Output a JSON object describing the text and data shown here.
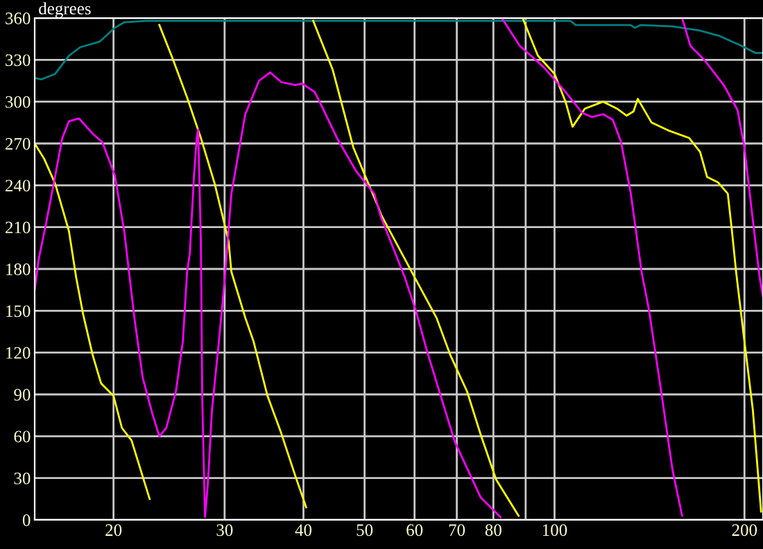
{
  "chart_data": {
    "type": "line",
    "ylabel": "degrees",
    "log": "x",
    "grid": true,
    "legend": false,
    "marker": "none",
    "line_style": "solid",
    "xlim": [
      15,
      214
    ],
    "xticks": [
      20,
      30,
      40,
      50,
      60,
      70,
      80,
      {
        "value": 90,
        "label": null
      },
      100,
      200
    ],
    "ylim": [
      0,
      360
    ],
    "yticks": [
      0,
      30,
      60,
      90,
      120,
      150,
      180,
      210,
      240,
      270,
      300,
      330,
      360
    ],
    "series": [
      {
        "color": "#008080",
        "x": [
          15.0,
          15.37,
          16.17,
          17.0,
          17.7,
          19.0,
          20.1,
          20.8,
          22.5,
          106,
          108,
          132,
          134,
          137,
          154,
          170,
          183,
          198,
          208,
          214
        ],
        "values": [
          317,
          316,
          320,
          333,
          339,
          343,
          353,
          357,
          358,
          358,
          355,
          355,
          353,
          355,
          354,
          351,
          347,
          340,
          335,
          335
        ]
      },
      {
        "color": "#ffff00",
        "x": [
          15.0,
          15.53,
          16.17,
          17.0,
          17.45,
          17.89,
          18.54,
          19.11,
          20.0,
          20.62,
          21.36,
          22.82,
          null,
          23.64,
          24.86,
          26.16,
          27.51,
          28.94,
          30.44,
          30.75,
          32.35,
          33.34,
          35.08,
          36.9,
          38.8,
          40.4,
          null,
          41.45,
          44.5,
          48.0,
          52.6,
          53.1,
          59.7,
          65.0,
          68.4,
          72.7,
          76.4,
          80.8,
          87.7,
          null,
          89.0,
          94.1,
          100,
          104.1,
          106.8,
          111.7,
          119.4,
          125.6,
          130.1,
          133.4,
          135.5,
          142.5,
          152.2,
          163.4,
          170.1,
          174.5,
          181.7,
          188.2,
          191.1,
          194.1,
          200,
          206.2,
          212.5
        ],
        "values": [
          270,
          259,
          241,
          207,
          174,
          148,
          118,
          98,
          89,
          66,
          57,
          15,
          null,
          355,
          330,
          303,
          274,
          241,
          200,
          178,
          145,
          128,
          89,
          62,
          32,
          9,
          null,
          358,
          323,
          267,
          224,
          219,
          176,
          145,
          118,
          92,
          61,
          29,
          3,
          null,
          360,
          333,
          320,
          300,
          282,
          295,
          300,
          295,
          290,
          293,
          302,
          285,
          279,
          274,
          264,
          246,
          242,
          234,
          207,
          177,
          128,
          79,
          6
        ]
      },
      {
        "color": "#ff00ff",
        "x": [
          15.0,
          15.22,
          15.61,
          16.17,
          16.59,
          17.0,
          17.63,
          18.54,
          19.2,
          20.1,
          20.8,
          21.58,
          22.25,
          23.05,
          23.64,
          24.25,
          25.11,
          25.76,
          26.16,
          26.42,
          26.83,
          27.1,
          27.24,
          27.51,
          27.65,
          27.93,
          28.22,
          28.65,
          29.38,
          29.99,
          30.75,
          32.35,
          34.02,
          35.43,
          36.9,
          38.8,
          39.8,
          41.66,
          42.95,
          45.2,
          48.5,
          51.8,
          53.1,
          57.9,
          60.3,
          62.8,
          65.7,
          69.5,
          76.4,
          82.1,
          null,
          82.5,
          88.1,
          96.0,
          104.1,
          110.6,
          114.6,
          119.4,
          123.7,
          127.5,
          132.1,
          137.5,
          141.1,
          147.6,
          153.8,
          159.3,
          null,
          159.3,
          164.2,
          172.7,
          185.4,
          195.0,
          200,
          205.1,
          211.4,
          214
        ],
        "values": [
          165,
          187,
          211,
          247,
          274,
          286,
          288,
          277,
          271,
          247,
          207,
          145,
          102,
          76,
          60,
          66,
          92,
          128,
          178,
          191,
          247,
          274,
          280,
          200,
          86,
          2,
          26,
          79,
          128,
          171,
          234,
          291,
          315,
          321,
          314,
          312,
          313,
          307,
          295,
          274,
          250,
          234,
          217,
          174,
          150,
          121,
          92,
          56,
          16,
          2,
          null,
          360,
          340,
          325,
          307,
          292,
          289,
          291,
          287,
          271,
          234,
          177,
          151,
          92,
          36,
          3,
          null,
          360,
          340,
          330,
          312,
          294,
          267,
          224,
          174,
          160
        ]
      }
    ]
  }
}
